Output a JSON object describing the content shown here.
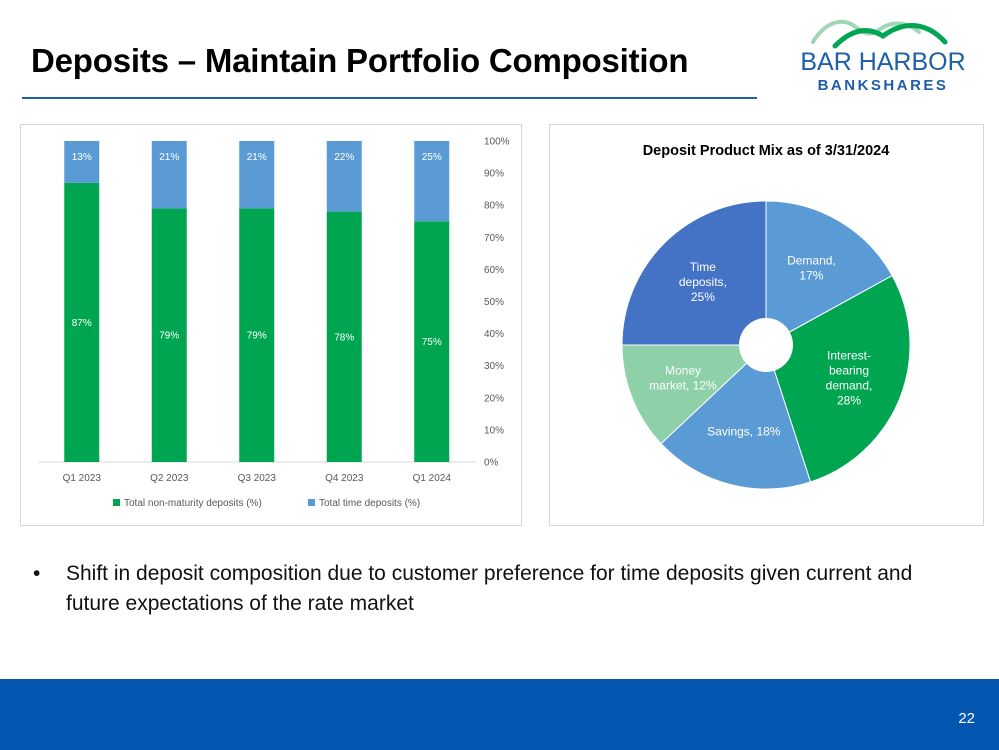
{
  "slide": {
    "title": "Deposits – Maintain Portfolio Composition",
    "bullet_symbol": "•",
    "bullet_text": "Shift in deposit composition due to customer preference for time deposits given current and future expectations of the rate market",
    "page_number": "22"
  },
  "logo": {
    "line1": "BAR HARBOR",
    "line2": "BANKSHARES"
  },
  "colors": {
    "green": "#00a551",
    "light_blue": "#5b9bd5",
    "blue": "#4472c4",
    "mint": "#8ed1a9",
    "footer": "#0456b0",
    "rule": "#1f5fa8"
  },
  "chart_data": [
    {
      "type": "bar",
      "stacked": true,
      "title": "",
      "categories": [
        "Q1 2023",
        "Q2 2023",
        "Q3 2023",
        "Q4 2023",
        "Q1 2024"
      ],
      "series": [
        {
          "name": "Total non-maturity deposits (%)",
          "values": [
            87,
            79,
            79,
            78,
            75
          ],
          "labels": [
            "87%",
            "79%",
            "79%",
            "78%",
            "75%"
          ],
          "color": "#00a551"
        },
        {
          "name": "Total time deposits (%)",
          "values": [
            13,
            21,
            21,
            22,
            25
          ],
          "labels": [
            "13%",
            "21%",
            "21%",
            "22%",
            "25%"
          ],
          "color": "#5b9bd5"
        }
      ],
      "y_ticks": [
        "0%",
        "10%",
        "20%",
        "30%",
        "40%",
        "50%",
        "60%",
        "70%",
        "80%",
        "90%",
        "100%"
      ],
      "ylim": [
        0,
        100
      ],
      "y_axis_side": "right",
      "legend_position": "bottom"
    },
    {
      "type": "pie",
      "donut": true,
      "title": "Deposit Product Mix as of 3/31/2024",
      "slices": [
        {
          "label_lines": [
            "Demand,",
            "17%"
          ],
          "value": 17,
          "color": "#5b9bd5"
        },
        {
          "label_lines": [
            "Interest-",
            "bearing",
            "demand,",
            "28%"
          ],
          "value": 28,
          "color": "#00a551"
        },
        {
          "label_lines": [
            "Savings, 18%"
          ],
          "value": 18,
          "color": "#5b9bd5"
        },
        {
          "label_lines": [
            "Money",
            "market, 12%"
          ],
          "value": 12,
          "color": "#8ed1a9"
        },
        {
          "label_lines": [
            "Time",
            "deposits,",
            "25%"
          ],
          "value": 25,
          "color": "#4472c4"
        }
      ]
    }
  ]
}
